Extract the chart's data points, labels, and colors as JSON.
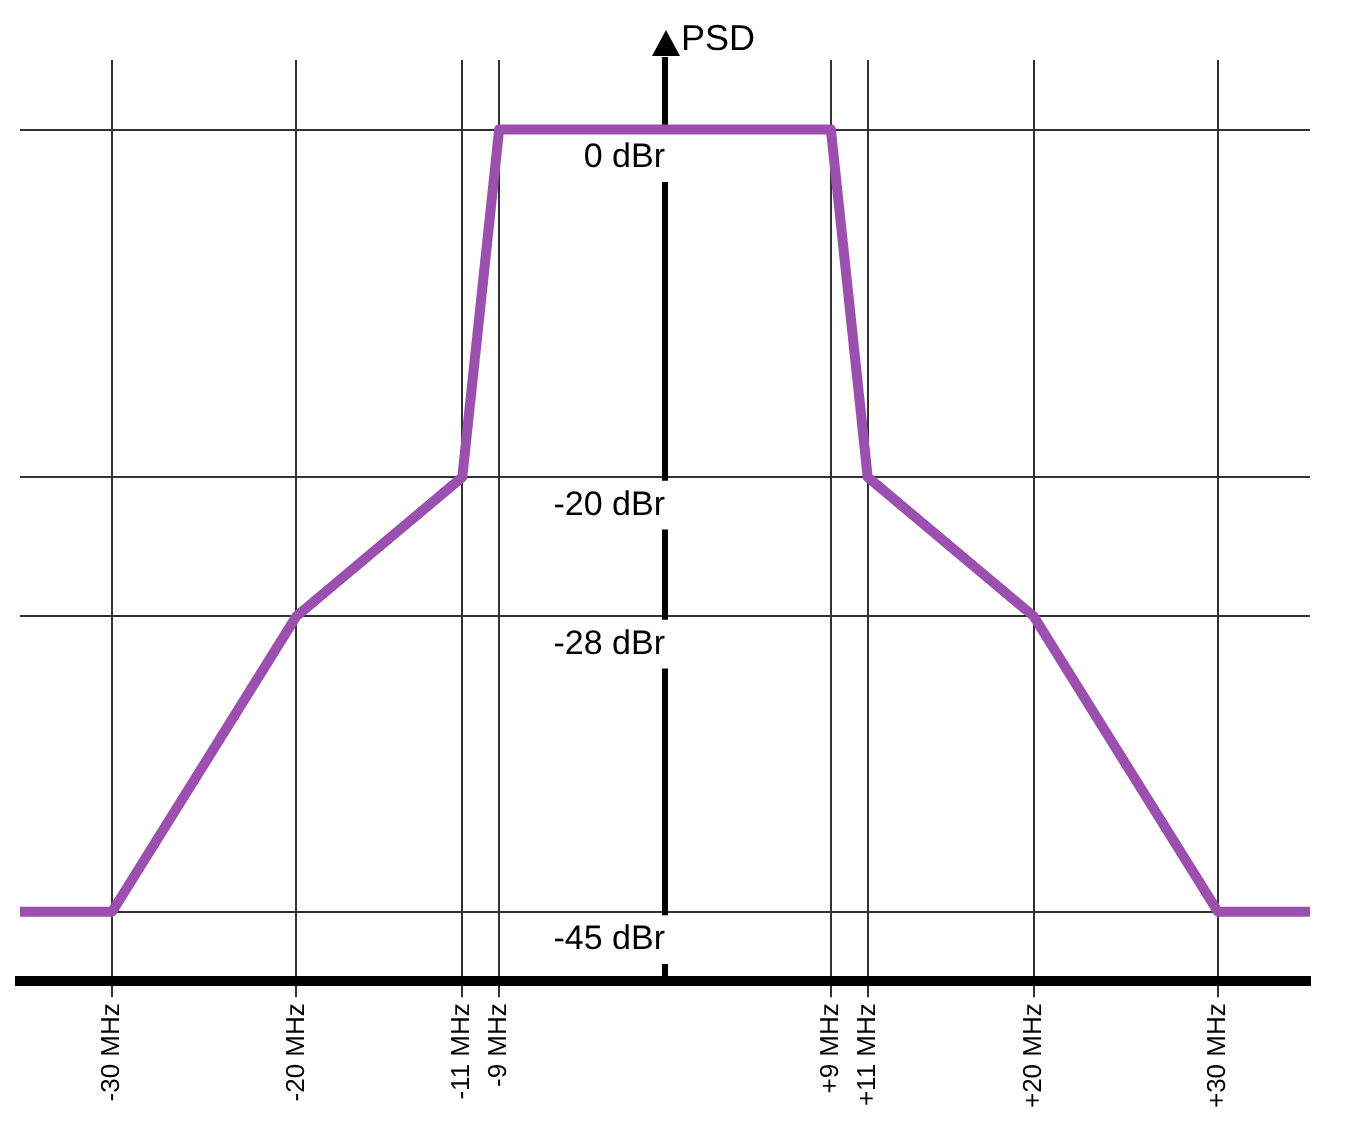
{
  "chart_data": {
    "type": "line",
    "ylabel": "PSD",
    "x": [
      -35,
      -30,
      -20,
      -11,
      -9,
      9,
      11,
      20,
      30,
      35
    ],
    "series": [
      {
        "color": "#9b4fae",
        "values": [
          -45,
          -45,
          -28,
          -20,
          0,
          0,
          -20,
          -28,
          -45,
          -45
        ]
      }
    ],
    "xlim": [
      -35,
      35
    ],
    "xticks": [
      {
        "value": -30,
        "label": "-30 MHz"
      },
      {
        "value": -20,
        "label": "-20 MHz"
      },
      {
        "value": -11,
        "label": "-11 MHz"
      },
      {
        "value": -9,
        "label": "-9 MHz"
      },
      {
        "value": 9,
        "label": "+9 MHz"
      },
      {
        "value": 11,
        "label": "+11 MHz"
      },
      {
        "value": 20,
        "label": "+20 MHz"
      },
      {
        "value": 30,
        "label": "+30 MHz"
      }
    ],
    "ylim": [
      -49,
      4
    ],
    "yticks": [
      {
        "value": -45,
        "label": "-45 dBr"
      },
      {
        "value": -28,
        "label": "-28 dBr"
      },
      {
        "value": -20,
        "label": "-20 dBr"
      },
      {
        "value": 0,
        "label": "0 dBr"
      }
    ],
    "grid": true,
    "legend": false,
    "marker": "none",
    "line_style": "solid"
  }
}
